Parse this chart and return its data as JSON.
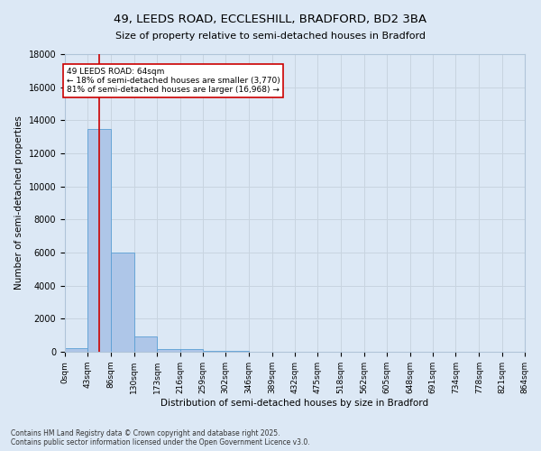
{
  "title_line1": "49, LEEDS ROAD, ECCLESHILL, BRADFORD, BD2 3BA",
  "title_line2": "Size of property relative to semi-detached houses in Bradford",
  "xlabel": "Distribution of semi-detached houses by size in Bradford",
  "ylabel": "Number of semi-detached properties",
  "property_size": 64,
  "property_label": "49 LEEDS ROAD: 64sqm",
  "pct_smaller": 18,
  "pct_larger": 81,
  "n_smaller": 3770,
  "n_larger": 16968,
  "bin_edges": [
    0,
    43,
    86,
    130,
    173,
    216,
    259,
    302,
    346,
    389,
    432,
    475,
    518,
    562,
    605,
    648,
    691,
    734,
    778,
    821,
    864
  ],
  "bar_heights": [
    200,
    13500,
    6000,
    950,
    170,
    160,
    80,
    50,
    0,
    0,
    0,
    0,
    0,
    0,
    0,
    0,
    0,
    0,
    0,
    0
  ],
  "bar_color": "#aec6e8",
  "bar_edge_color": "#5a9fd4",
  "red_line_x": 64,
  "ylim": [
    0,
    18000
  ],
  "yticks": [
    0,
    2000,
    4000,
    6000,
    8000,
    10000,
    12000,
    14000,
    16000,
    18000
  ],
  "grid_color": "#c8d4e0",
  "bg_color": "#dce8f5",
  "footer_line1": "Contains HM Land Registry data © Crown copyright and database right 2025.",
  "footer_line2": "Contains public sector information licensed under the Open Government Licence v3.0."
}
